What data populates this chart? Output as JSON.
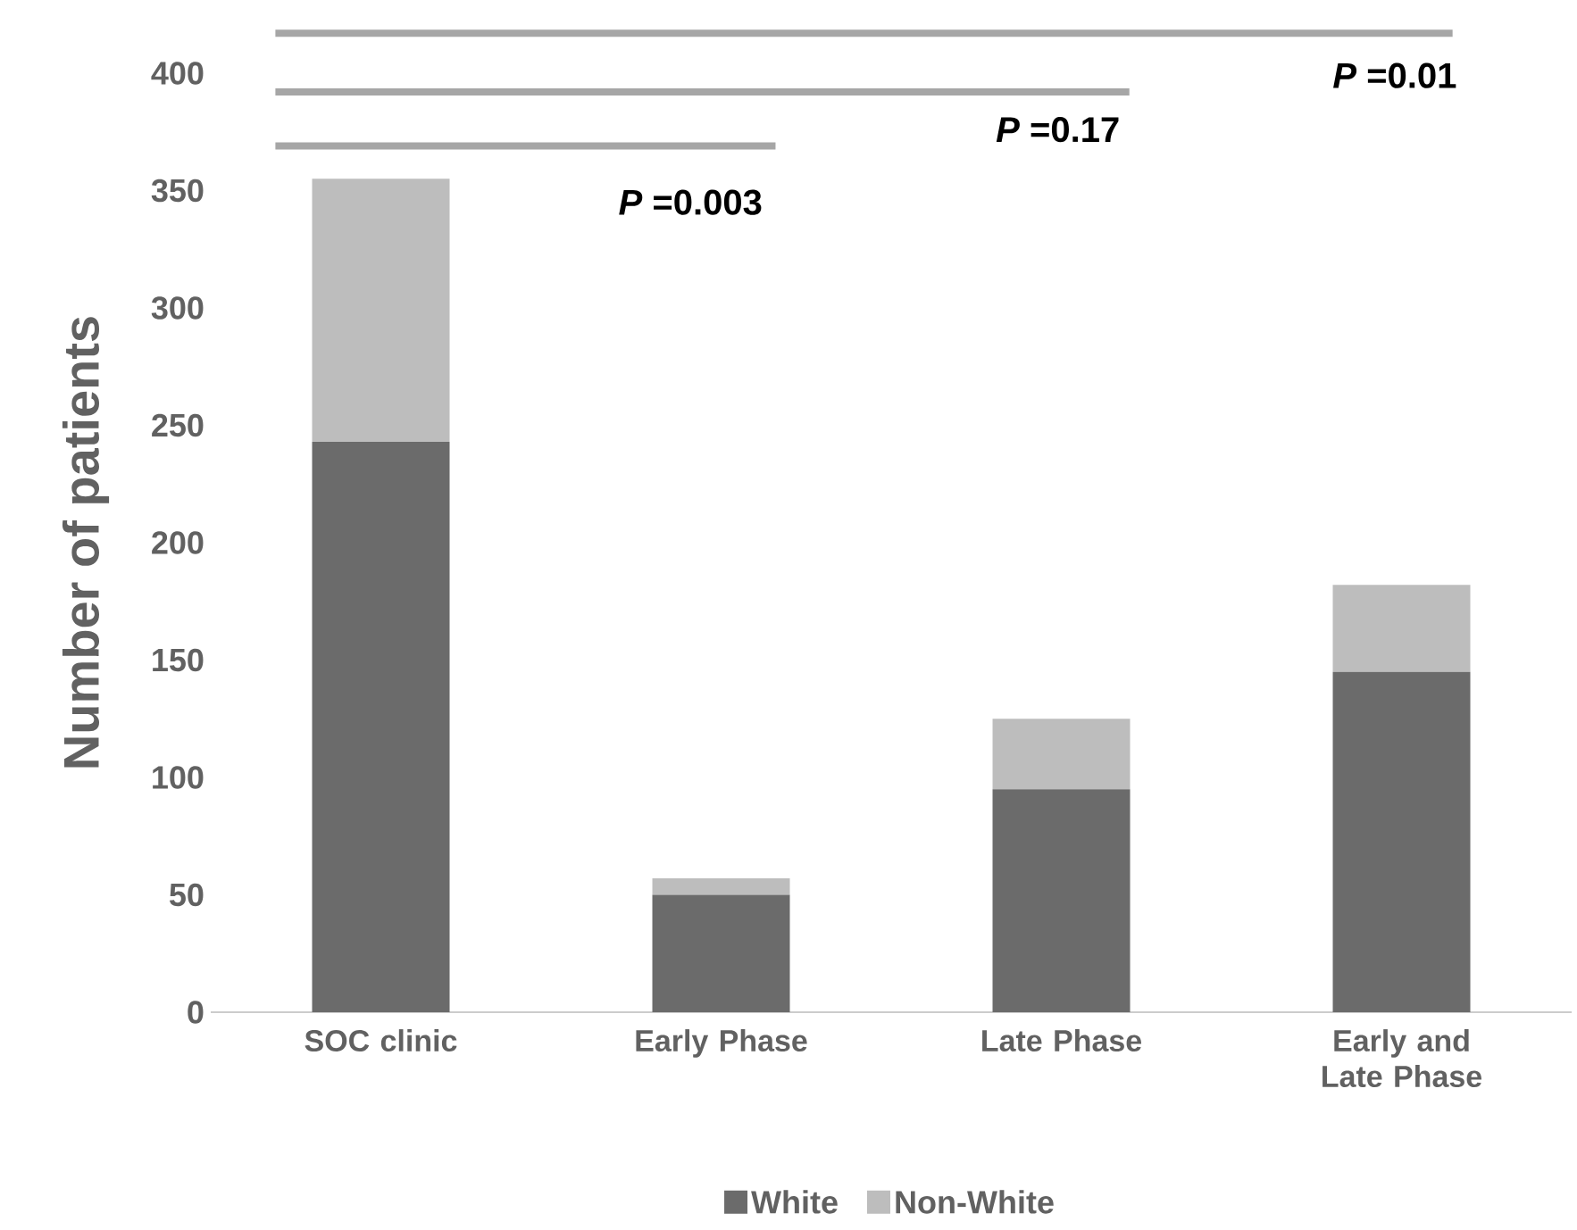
{
  "chart_data": {
    "type": "bar",
    "stacked": true,
    "categories": [
      "SOC clinic",
      "Early Phase",
      "Late Phase",
      "Early and Late Phase"
    ],
    "series": [
      {
        "name": "White",
        "color": "#6b6b6b",
        "values": [
          243,
          50,
          95,
          145
        ]
      },
      {
        "name": "Non-White",
        "color": "#bdbdbd",
        "values": [
          112,
          7,
          30,
          37
        ]
      }
    ],
    "ylim": [
      0,
      400
    ],
    "yticks": [
      0,
      50,
      100,
      150,
      200,
      250,
      300,
      350,
      400
    ],
    "ylabel": "Number of patients",
    "annotations": [
      "*P* =0.003",
      "*P* =0.17",
      "*P* =0.01"
    ],
    "legend": "bottom"
  }
}
